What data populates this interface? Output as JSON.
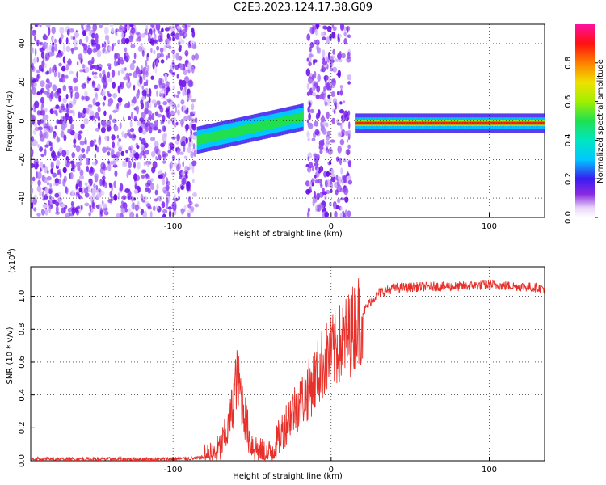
{
  "figure": {
    "title": "C2E3.2023.124.17.38.G09"
  },
  "chart_data": [
    {
      "type": "heatmap",
      "xlabel": "Height of straight line (km)",
      "ylabel": "Frequency (Hz)",
      "xlim": [
        -190,
        135
      ],
      "ylim": [
        -50,
        50
      ],
      "x_ticks": [
        -100,
        0,
        100
      ],
      "y_ticks": [
        -40,
        -20,
        0,
        20,
        40
      ],
      "grid": true,
      "colorbar": {
        "label": "Normalized spectral amplitude",
        "range": [
          0,
          1
        ],
        "ticks": [
          0.0,
          0.2,
          0.4,
          0.6,
          0.8
        ],
        "colormap": "rainbow (white-purple-blue-cyan-green-yellow-red-magenta)"
      },
      "regions": [
        {
          "x_from": -190,
          "x_to": -85,
          "description": "broadband noise, purple speckle",
          "level": 0.15
        },
        {
          "x_from": -85,
          "x_to": -18,
          "description": "signal band near 0 Hz",
          "level": 0.5
        },
        {
          "x_from": -15,
          "x_to": 12,
          "description": "broadband noise, purple speckle",
          "level": 0.15
        },
        {
          "x_from": 15,
          "x_to": 135,
          "description": "strong signal band near 0 Hz",
          "level": 0.9
        }
      ]
    },
    {
      "type": "line",
      "xlabel": "Height of straight line (km)",
      "ylabel": "SNR (10 * v/v)",
      "y_multiplier": "(x10",
      "y_multiplier_exp": "4",
      "y_multiplier_close": ")",
      "xlim": [
        -190,
        135
      ],
      "ylim": [
        0,
        1.18
      ],
      "x_ticks": [
        -100,
        0,
        100
      ],
      "y_ticks": [
        0.0,
        0.2,
        0.4,
        0.6,
        0.8,
        1.0
      ],
      "grid": true,
      "series": [
        {
          "color": "#e8302a",
          "x": [
            -190,
            -150,
            -110,
            -85,
            -75,
            -70,
            -65,
            -62,
            -60,
            -58,
            -55,
            -52,
            -50,
            -45,
            -40,
            -35,
            -30,
            -25,
            -20,
            -15,
            -10,
            -5,
            0,
            5,
            10,
            15,
            20,
            25,
            30,
            40,
            60,
            80,
            100,
            120,
            135
          ],
          "y": [
            0.01,
            0.01,
            0.01,
            0.015,
            0.03,
            0.08,
            0.2,
            0.35,
            0.5,
            0.45,
            0.3,
            0.15,
            0.1,
            0.05,
            0.03,
            0.1,
            0.2,
            0.3,
            0.35,
            0.42,
            0.5,
            0.6,
            0.65,
            0.7,
            0.75,
            0.82,
            0.9,
            0.97,
            1.02,
            1.05,
            1.06,
            1.06,
            1.07,
            1.06,
            1.05
          ]
        }
      ]
    }
  ]
}
